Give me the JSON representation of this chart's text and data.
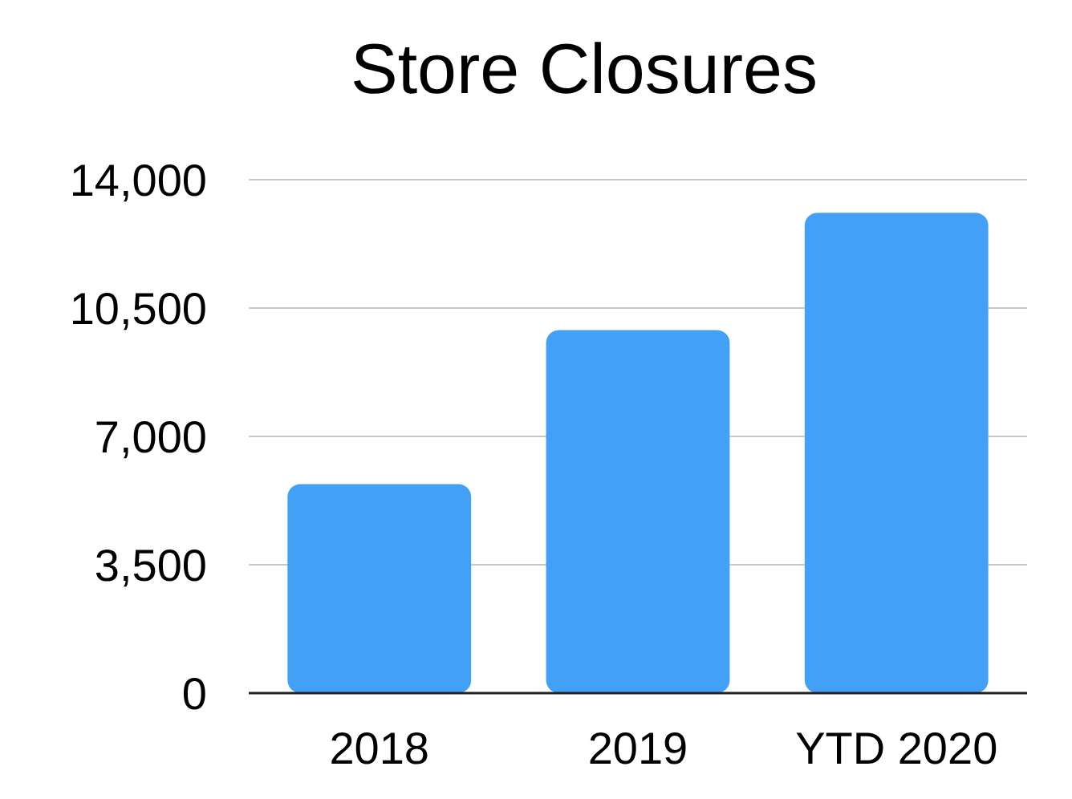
{
  "chart_data": {
    "type": "bar",
    "title": "Store Closures",
    "categories": [
      "2018",
      "2019",
      "YTD 2020"
    ],
    "values": [
      5700,
      9900,
      13100
    ],
    "color": "#42a1f7",
    "ylim": [
      0,
      14000
    ],
    "yticks": [
      {
        "value": 0,
        "label": "0"
      },
      {
        "value": 3500,
        "label": "3,500"
      },
      {
        "value": 7000,
        "label": "7,000"
      },
      {
        "value": 10500,
        "label": "10,500"
      },
      {
        "value": 14000,
        "label": "14,000"
      }
    ],
    "grid": "y"
  }
}
